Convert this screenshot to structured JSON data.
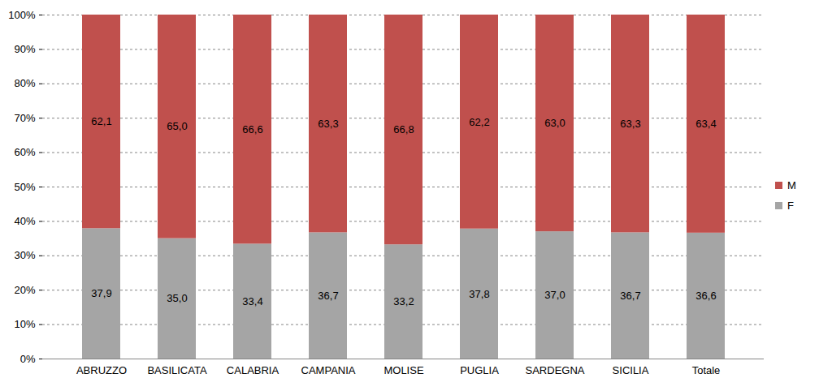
{
  "chart_data": {
    "type": "bar",
    "stacked": true,
    "categories": [
      "ABRUZZO",
      "BASILICATA",
      "CALABRIA",
      "CAMPANIA",
      "MOLISE",
      "PUGLIA",
      "SARDEGNA",
      "SICILIA",
      "Totale"
    ],
    "series": [
      {
        "name": "F",
        "color": "#a5a5a5",
        "values": [
          37.9,
          35.0,
          33.4,
          36.7,
          33.2,
          37.8,
          37.0,
          36.7,
          36.6
        ],
        "value_labels": [
          "37,9",
          "35,0",
          "33,4",
          "36,7",
          "33,2",
          "37,8",
          "37,0",
          "36,7",
          "36,6"
        ]
      },
      {
        "name": "M",
        "color": "#c0504d",
        "values": [
          62.1,
          65.0,
          66.6,
          63.3,
          66.8,
          62.2,
          63.0,
          63.3,
          63.4
        ],
        "value_labels": [
          "62,1",
          "65,0",
          "66,6",
          "63,3",
          "66,8",
          "62,2",
          "63,0",
          "63,3",
          "63,4"
        ]
      }
    ],
    "ylim": [
      0,
      100
    ],
    "yticks": [
      {
        "value": 0,
        "label": "0%"
      },
      {
        "value": 10,
        "label": "10%"
      },
      {
        "value": 20,
        "label": "20%"
      },
      {
        "value": 30,
        "label": "30%"
      },
      {
        "value": 40,
        "label": "40%"
      },
      {
        "value": 50,
        "label": "50%"
      },
      {
        "value": 60,
        "label": "60%"
      },
      {
        "value": 70,
        "label": "70%"
      },
      {
        "value": 80,
        "label": "80%"
      },
      {
        "value": 90,
        "label": "90%"
      },
      {
        "value": 100,
        "label": "100%"
      }
    ],
    "grid": true,
    "data_labels": true,
    "legend": "right"
  }
}
